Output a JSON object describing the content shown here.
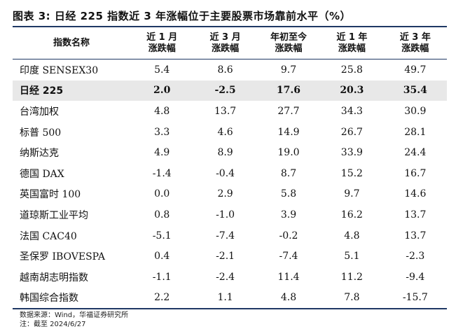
{
  "title": "图表 3: 日经 225 指数近 3 年涨幅位于主要股票市场靠前水平（%）",
  "headers": [
    [
      "指数名称"
    ],
    [
      "近 1 月",
      "涨跌幅"
    ],
    [
      "近 3 月",
      "涨跌幅"
    ],
    [
      "年初至今",
      "涨跌幅"
    ],
    [
      "近 1 年",
      "涨跌幅"
    ],
    [
      "近 3 年",
      "涨跌幅"
    ]
  ],
  "rows": [
    [
      "印度 SENSEX30",
      "5.4",
      "8.6",
      "9.7",
      "25.8",
      "49.7"
    ],
    [
      "日经 225",
      "2.0",
      "-2.5",
      "17.6",
      "20.3",
      "35.4"
    ],
    [
      "台湾加权",
      "4.8",
      "13.7",
      "27.7",
      "34.3",
      "30.9"
    ],
    [
      "标普 500",
      "3.3",
      "4.6",
      "14.9",
      "26.7",
      "28.1"
    ],
    [
      "纳斯达克",
      "4.9",
      "8.9",
      "19.0",
      "33.9",
      "24.4"
    ],
    [
      "德国 DAX",
      "-1.4",
      "-0.4",
      "8.7",
      "15.2",
      "16.7"
    ],
    [
      "英国富时 100",
      "0.0",
      "2.9",
      "5.8",
      "9.7",
      "14.6"
    ],
    [
      "道琼斯工业平均",
      "0.8",
      "-1.0",
      "3.9",
      "16.2",
      "13.7"
    ],
    [
      "法国 CAC40",
      "-5.1",
      "-7.4",
      "-0.2",
      "4.8",
      "13.7"
    ],
    [
      "圣保罗 IBOVESPA",
      "0.4",
      "-2.1",
      "-7.4",
      "5.1",
      "-2.3"
    ],
    [
      "越南胡志明指数",
      "-1.1",
      "-2.4",
      "11.4",
      "11.2",
      "-9.4"
    ],
    [
      "韩国综合指数",
      "2.2",
      "1.1",
      "4.8",
      "7.8",
      "-15.7"
    ]
  ],
  "highlight_row": 1,
  "highlight_color": "#e8e8e8",
  "rule_color": "#1f3864",
  "source_note": "数据来源：Wind，华福证券研究所",
  "date_note": "注：截至 2024/6/27"
}
